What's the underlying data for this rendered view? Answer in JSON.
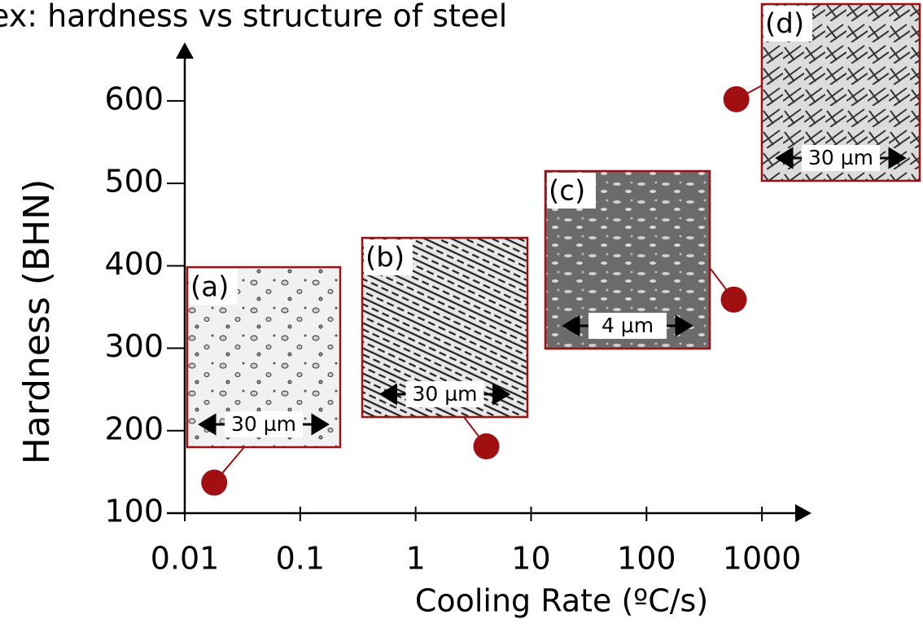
{
  "chart_data": {
    "type": "scatter",
    "title": "ex:  hardness vs structure of steel",
    "x_label": "Cooling Rate (ºC/s)",
    "y_label": "Hardness (BHN)",
    "x": [
      0.018,
      4.1,
      570,
      600
    ],
    "values": [
      137,
      181,
      359,
      602
    ],
    "color": "#a00f12",
    "log_x": true,
    "grid": false,
    "xlim": [
      0.01,
      2600
    ],
    "ylim": [
      100,
      670
    ],
    "xticks": [
      0.01,
      0.1,
      1,
      10,
      100,
      1000
    ],
    "yticks": [
      100,
      200,
      300,
      400,
      500,
      600
    ],
    "insets": [
      {
        "label": "(a)",
        "scale": "30 µm"
      },
      {
        "label": "(b)",
        "scale": "30 µm"
      },
      {
        "label": "(c)",
        "scale": "4 µm"
      },
      {
        "label": "(d)",
        "scale": "30 µm"
      }
    ]
  }
}
